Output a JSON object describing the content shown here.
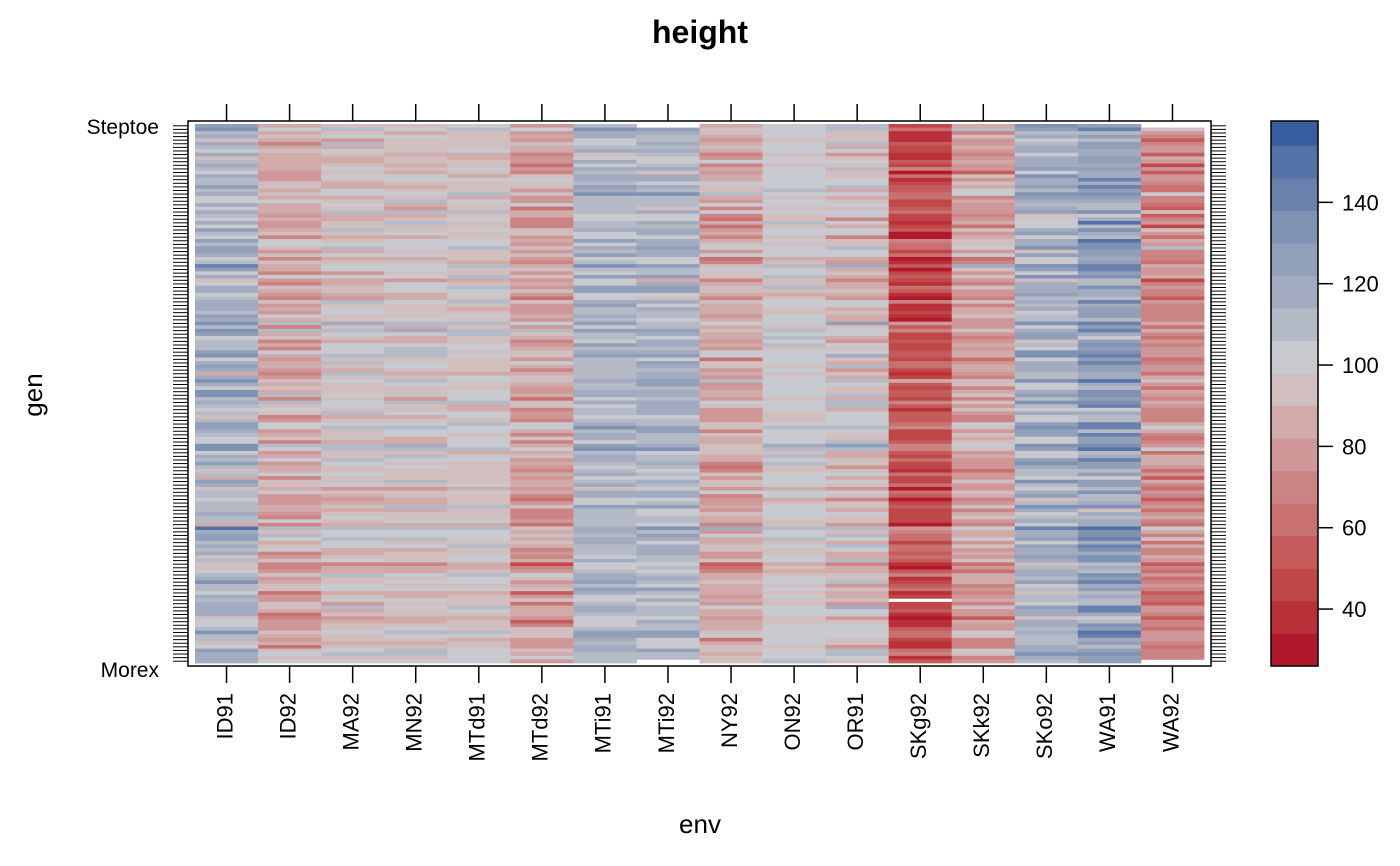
{
  "chart_data": {
    "type": "heatmap",
    "title": "height",
    "xlabel": "env",
    "ylabel": "gen",
    "x_categories": [
      "ID91",
      "ID92",
      "MA92",
      "MN92",
      "MTd91",
      "MTd92",
      "MTi91",
      "MTi92",
      "NY92",
      "ON92",
      "OR91",
      "SKg92",
      "SKk92",
      "SKo92",
      "WA91",
      "WA92"
    ],
    "y_tick_labels_legible": [
      "Steptoe",
      "Morex"
    ],
    "y_count": 150,
    "env_means": [
      113,
      87,
      96,
      95,
      98,
      83,
      113,
      113,
      86,
      100,
      97,
      50,
      82,
      116,
      125,
      73
    ],
    "env_spread": [
      14,
      14,
      11,
      11,
      8,
      14,
      11,
      11,
      14,
      7,
      13,
      15,
      14,
      14,
      16,
      14
    ],
    "missing_cells": [
      [
        7,
        0
      ],
      [
        7,
        149
      ],
      [
        11,
        132
      ],
      [
        15,
        0
      ],
      [
        15,
        149
      ]
    ],
    "colorbar": {
      "range": [
        26,
        160
      ],
      "breaks": [
        26,
        34,
        42,
        50,
        58,
        66,
        74,
        82,
        90,
        98,
        106,
        114,
        122,
        130,
        138,
        146,
        154,
        160
      ],
      "colors": [
        "#b2182b",
        "#b93038",
        "#bf4747",
        "#c55b5b",
        "#c97070",
        "#cc8383",
        "#cf9797",
        "#d1aaaa",
        "#d1bfbf",
        "#c8cad0",
        "#b5bac7",
        "#a3abc0",
        "#919fb9",
        "#7f92b4",
        "#6a80ad",
        "#5572a8",
        "#395ea0"
      ],
      "ticks": [
        40,
        60,
        80,
        100,
        120,
        140
      ]
    }
  }
}
